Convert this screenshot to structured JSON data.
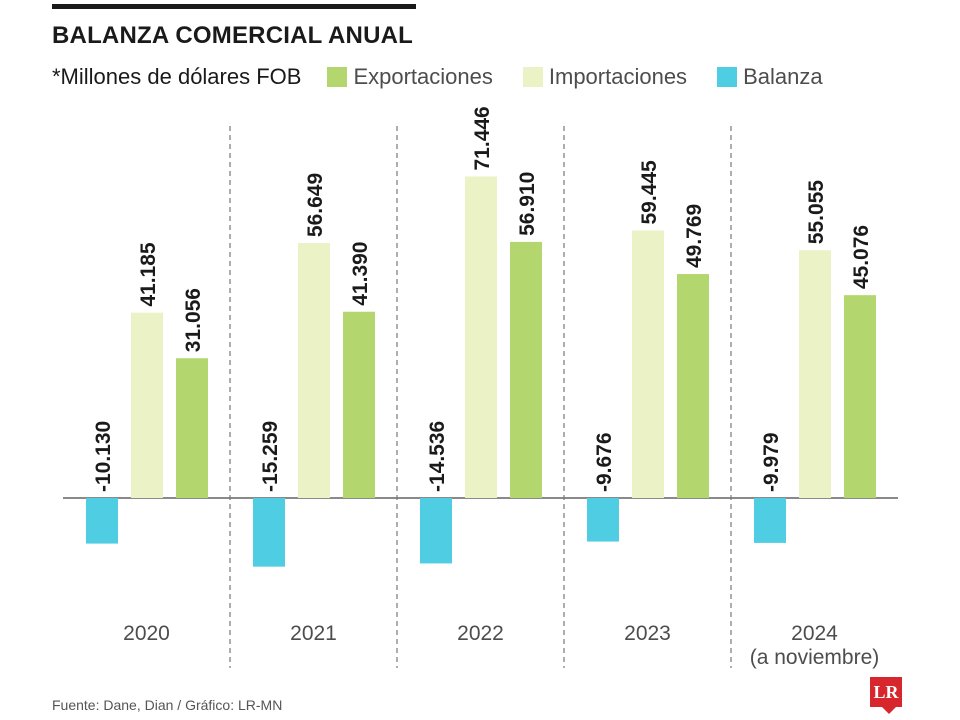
{
  "chart_data": {
    "type": "bar",
    "title": "BALANZA COMERCIAL ANUAL",
    "unit_note": "*Millones de dólares FOB",
    "categories": [
      "2020",
      "2021",
      "2022",
      "2023",
      "2024"
    ],
    "category_notes": [
      "",
      "",
      "",
      "",
      "(a noviembre)"
    ],
    "series": [
      {
        "name": "Balanza",
        "color": "#4fcde3",
        "values": [
          -10.13,
          -15.259,
          -14.536,
          -9.676,
          -9.979
        ],
        "labels": [
          "-10.130",
          "-15.259",
          "-14.536",
          "-9.676",
          "-9.979"
        ]
      },
      {
        "name": "Importaciones",
        "color": "#eaf2c6",
        "values": [
          41.185,
          56.649,
          71.446,
          59.445,
          55.055
        ],
        "labels": [
          "41.185",
          "56.649",
          "71.446",
          "59.445",
          "55.055"
        ]
      },
      {
        "name": "Exportaciones",
        "color": "#b3d66f",
        "values": [
          31.056,
          41.39,
          56.91,
          49.769,
          45.076
        ],
        "labels": [
          "31.056",
          "41.390",
          "56.910",
          "49.769",
          "45.076"
        ]
      }
    ],
    "legend_order": [
      "Exportaciones",
      "Importaciones",
      "Balanza"
    ],
    "ylim": [
      -20,
      80
    ],
    "grid": false,
    "legend": "top"
  },
  "source": "Fuente: Dane, Dian / Gráfico: LR-MN",
  "logo_text": "LR"
}
